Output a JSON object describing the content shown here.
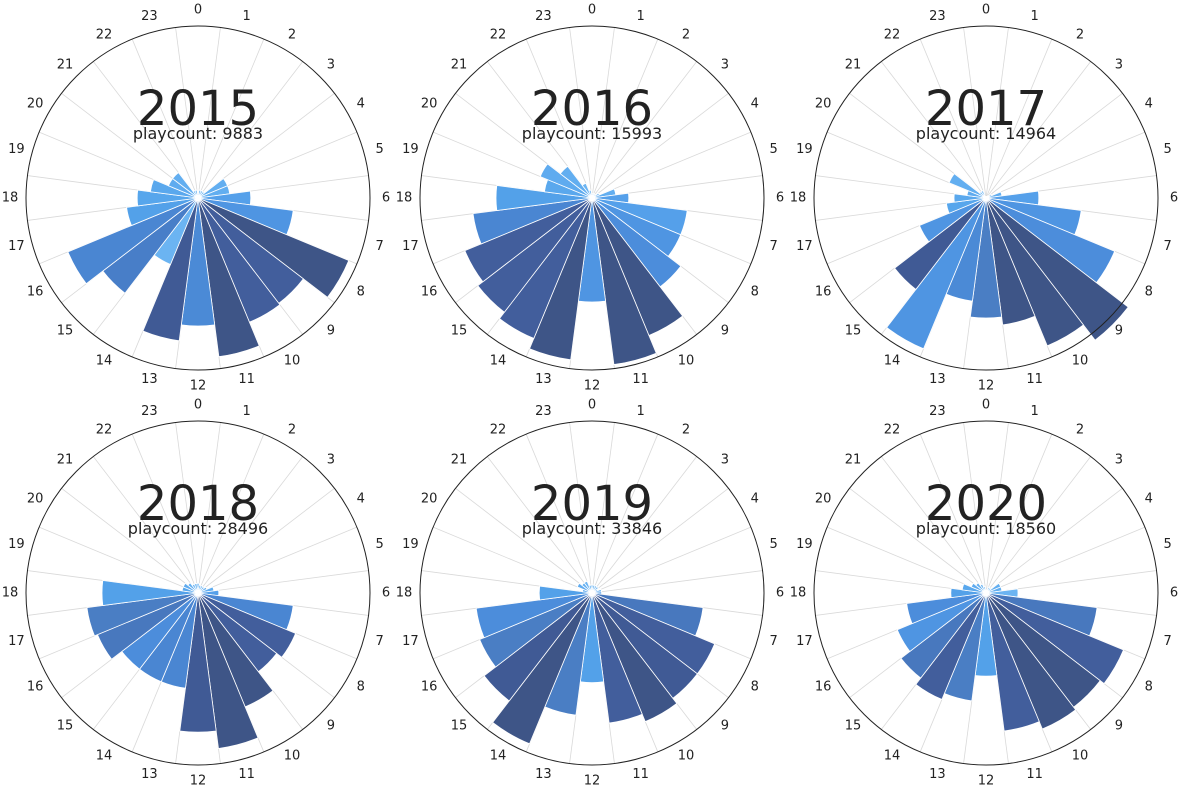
{
  "chart_data": [
    {
      "type": "polar-bar",
      "title": "2015",
      "playcount_label": "playcount: 9883",
      "hour_labels": [
        "0",
        "1",
        "2",
        "3",
        "4",
        "5",
        "6",
        "7",
        "8",
        "9",
        "10",
        "11",
        "12",
        "13",
        "14",
        "15",
        "16",
        "17",
        "18",
        "19",
        "20",
        "21",
        "22",
        "23"
      ],
      "values": [
        0.01,
        0.05,
        0.05,
        0.05,
        0.2,
        0.2,
        0.33,
        0.6,
        1.02,
        0.83,
        0.84,
        1.0,
        0.8,
        0.9,
        0.45,
        0.75,
        0.88,
        0.45,
        0.38,
        0.3,
        0.2,
        0.2,
        0.05,
        0.05
      ],
      "colors": [
        "#6bb4f2",
        "#6bb4f2",
        "#6bb4f2",
        "#6bb4f2",
        "#62aef0",
        "#62aef0",
        "#55a0ea",
        "#4f95e2",
        "#3e5587",
        "#425e9c",
        "#425e9c",
        "#3e5587",
        "#4b8ad6",
        "#405a95",
        "#6bb4f2",
        "#487ec8",
        "#4a86d2",
        "#53a1e9",
        "#57a6ec",
        "#5aa8ed",
        "#5fabef",
        "#62aef0",
        "#6bb4f2",
        "#6bb4f2"
      ]
    },
    {
      "type": "polar-bar",
      "title": "2016",
      "playcount_label": "playcount: 15993",
      "hour_labels": [
        "0",
        "1",
        "2",
        "3",
        "4",
        "5",
        "6",
        "7",
        "8",
        "9",
        "10",
        "11",
        "12",
        "13",
        "14",
        "15",
        "16",
        "17",
        "18",
        "19",
        "20",
        "21",
        "22",
        "23"
      ],
      "values": [
        0.01,
        0.03,
        0.03,
        0.03,
        0.05,
        0.15,
        0.23,
        0.6,
        0.6,
        0.7,
        0.93,
        1.05,
        0.65,
        1.02,
        0.95,
        0.9,
        0.86,
        0.75,
        0.6,
        0.3,
        0.35,
        0.25,
        0.1,
        0.05
      ],
      "colors": [
        "#6bb4f2",
        "#6bb4f2",
        "#6bb4f2",
        "#6bb4f2",
        "#62aef0",
        "#62aef0",
        "#55a0ea",
        "#55a0ea",
        "#4f95e2",
        "#4c8ddb",
        "#3e5587",
        "#3e5587",
        "#4f95e2",
        "#3e5587",
        "#425e9c",
        "#425e9c",
        "#425e9c",
        "#4a86d2",
        "#53a1e9",
        "#5aa8ed",
        "#5fabef",
        "#62aef0",
        "#6bb4f2",
        "#6bb4f2"
      ]
    },
    {
      "type": "polar-bar",
      "title": "2017",
      "playcount_label": "playcount: 14964",
      "hour_labels": [
        "0",
        "1",
        "2",
        "3",
        "4",
        "5",
        "6",
        "7",
        "8",
        "9",
        "10",
        "11",
        "12",
        "13",
        "14",
        "15",
        "16",
        "17",
        "18",
        "19",
        "20",
        "21",
        "22",
        "23"
      ],
      "values": [
        0.01,
        0.01,
        0.01,
        0.02,
        0.04,
        0.1,
        0.33,
        0.6,
        0.87,
        1.12,
        1.0,
        0.8,
        0.75,
        0.65,
        1.02,
        0.72,
        0.45,
        0.25,
        0.2,
        0.12,
        0.25,
        0.05,
        0.05,
        0.01
      ],
      "colors": [
        "#6bb4f2",
        "#6bb4f2",
        "#6bb4f2",
        "#6bb4f2",
        "#62aef0",
        "#62aef0",
        "#55a0ea",
        "#4f95e2",
        "#4c8ddb",
        "#3e5587",
        "#3e5587",
        "#3e5587",
        "#4a7ec4",
        "#4b8ad6",
        "#4f95e2",
        "#405a95",
        "#4f95e2",
        "#57a6ec",
        "#5aa8ed",
        "#5fabef",
        "#62aef0",
        "#6bb4f2",
        "#6bb4f2",
        "#6bb4f2"
      ]
    },
    {
      "type": "polar-bar",
      "title": "2018",
      "playcount_label": "playcount: 28496",
      "hour_labels": [
        "0",
        "1",
        "2",
        "3",
        "4",
        "5",
        "6",
        "7",
        "8",
        "9",
        "10",
        "11",
        "12",
        "13",
        "14",
        "15",
        "16",
        "17",
        "18",
        "19",
        "20",
        "21",
        "22",
        "23"
      ],
      "values": [
        0.06,
        0.05,
        0.05,
        0.05,
        0.06,
        0.1,
        0.13,
        0.6,
        0.66,
        0.62,
        0.77,
        0.98,
        0.87,
        0.6,
        0.6,
        0.6,
        0.68,
        0.7,
        0.6,
        0.1,
        0.1,
        0.08,
        0.06,
        0.06
      ],
      "colors": [
        "#6bb4f2",
        "#6bb4f2",
        "#6bb4f2",
        "#6bb4f2",
        "#62aef0",
        "#62aef0",
        "#55a0ea",
        "#4a86d2",
        "#425e9c",
        "#425e9c",
        "#3e5587",
        "#3e5587",
        "#405a95",
        "#4a86d2",
        "#4a86d2",
        "#4c8ddb",
        "#4878be",
        "#4a7ec4",
        "#53a1e9",
        "#5aa8ed",
        "#5fabef",
        "#62aef0",
        "#6bb4f2",
        "#6bb4f2"
      ]
    },
    {
      "type": "polar-bar",
      "title": "2019",
      "playcount_label": "playcount: 33846",
      "hour_labels": [
        "0",
        "1",
        "2",
        "3",
        "4",
        "5",
        "6",
        "7",
        "8",
        "9",
        "10",
        "11",
        "12",
        "13",
        "14",
        "15",
        "16",
        "17",
        "18",
        "19",
        "20",
        "21",
        "22",
        "23"
      ],
      "values": [
        0.05,
        0.05,
        0.05,
        0.05,
        0.04,
        0.06,
        0.06,
        0.7,
        0.83,
        0.83,
        0.87,
        0.82,
        0.56,
        0.77,
        1.02,
        0.85,
        0.76,
        0.73,
        0.33,
        0.06,
        0.1,
        0.08,
        0.08,
        0.05
      ],
      "colors": [
        "#6bb4f2",
        "#6bb4f2",
        "#6bb4f2",
        "#6bb4f2",
        "#62aef0",
        "#62aef0",
        "#55a0ea",
        "#4878be",
        "#425e9c",
        "#405a95",
        "#3e5587",
        "#425e9c",
        "#53a1e9",
        "#4a7ec4",
        "#3e5587",
        "#405a95",
        "#4a7ec4",
        "#4c8ddb",
        "#53a1e9",
        "#5aa8ed",
        "#5fabef",
        "#62aef0",
        "#6bb4f2",
        "#6bb4f2"
      ]
    },
    {
      "type": "polar-bar",
      "title": "2020",
      "playcount_label": "playcount: 18560",
      "hour_labels": [
        "0",
        "1",
        "2",
        "3",
        "4",
        "5",
        "6",
        "7",
        "8",
        "9",
        "10",
        "11",
        "12",
        "13",
        "14",
        "15",
        "16",
        "17",
        "18",
        "19",
        "20",
        "21",
        "22",
        "23"
      ],
      "values": [
        0.02,
        0.02,
        0.04,
        0.04,
        0.1,
        0.1,
        0.2,
        0.7,
        0.93,
        0.9,
        0.92,
        0.87,
        0.52,
        0.68,
        0.72,
        0.67,
        0.6,
        0.5,
        0.22,
        0.15,
        0.1,
        0.08,
        0.06,
        0.04
      ],
      "colors": [
        "#6bb4f2",
        "#6bb4f2",
        "#6bb4f2",
        "#6bb4f2",
        "#62aef0",
        "#62aef0",
        "#6bb4f2",
        "#4878be",
        "#425e9c",
        "#3e5587",
        "#3e5587",
        "#425e9c",
        "#53a1e9",
        "#4a7ec4",
        "#425e9c",
        "#4878be",
        "#4f95e2",
        "#4c8ddb",
        "#53a1e9",
        "#5aa8ed",
        "#5fabef",
        "#62aef0",
        "#6bb4f2",
        "#6bb4f2"
      ]
    }
  ]
}
